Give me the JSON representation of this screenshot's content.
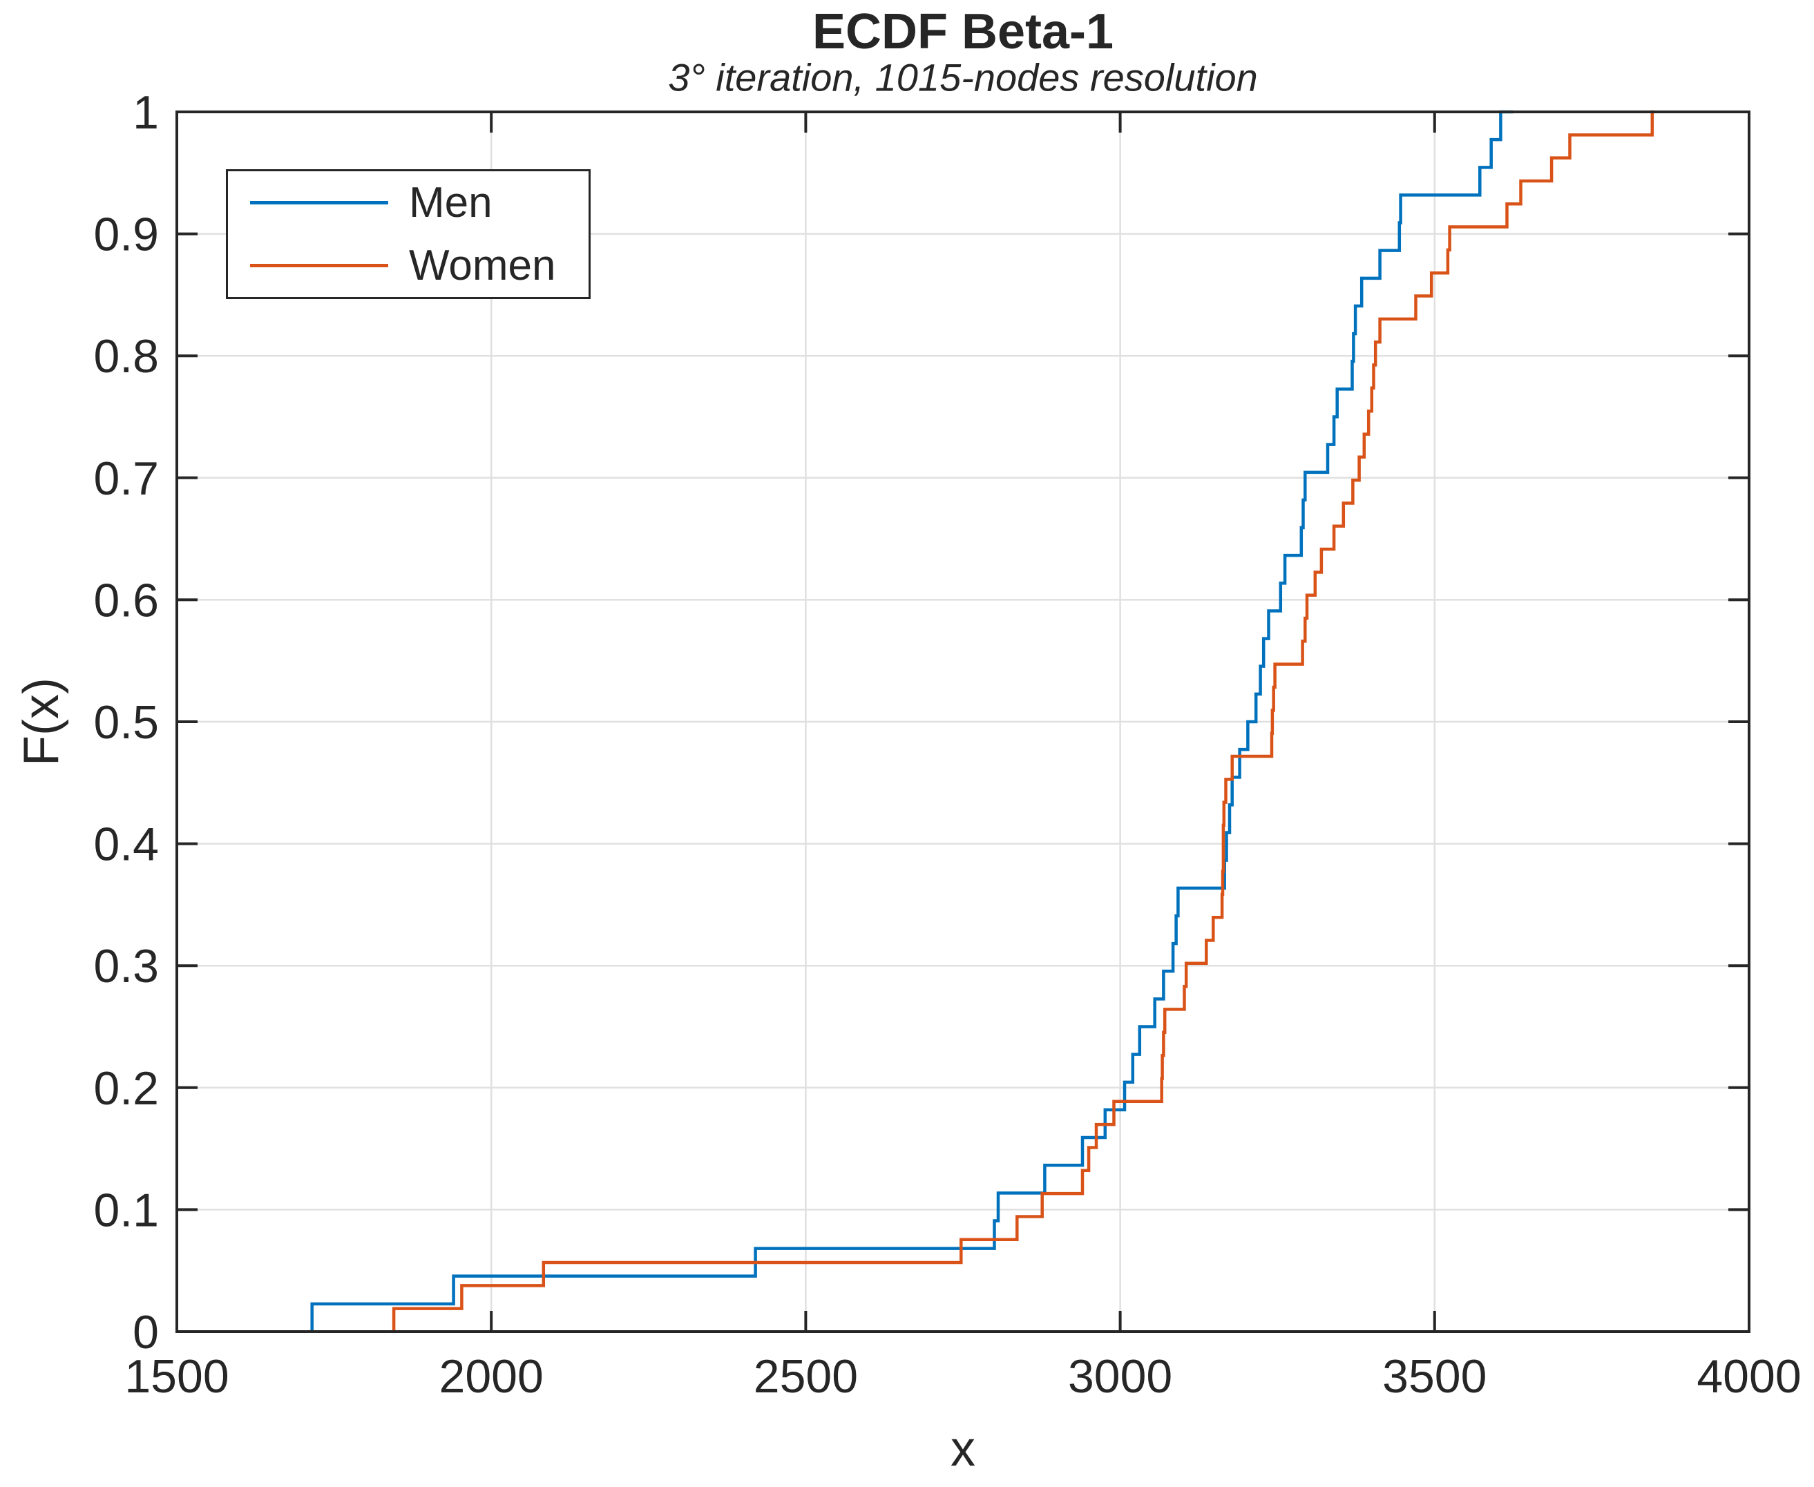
{
  "chart_data": {
    "type": "line",
    "subtype": "ecdf-step",
    "title": "ECDF Beta-1",
    "subtitle": "3° iteration, 1015-nodes resolution",
    "xlabel": "x",
    "ylabel": "F(x)",
    "xlim": [
      1500,
      4000
    ],
    "ylim": [
      0,
      1
    ],
    "xticks": [
      1500,
      2000,
      2500,
      3000,
      3500,
      4000
    ],
    "xtick_labels": [
      "1500",
      "2000",
      "2500",
      "3000",
      "3500",
      "4000"
    ],
    "yticks": [
      0,
      0.1,
      0.2,
      0.3,
      0.4,
      0.5,
      0.6,
      0.7,
      0.8,
      0.9,
      1
    ],
    "ytick_labels": [
      "0",
      "0.1",
      "0.2",
      "0.3",
      "0.4",
      "0.5",
      "0.6",
      "0.7",
      "0.8",
      "0.9",
      "1"
    ],
    "grid": true,
    "grid_color": "#e0e0e0",
    "axis_color": "#262626",
    "legend_position": "top-left-inside",
    "series": [
      {
        "name": "Men",
        "color": "#0072BD",
        "points": [
          [
            1715,
            0.0227
          ],
          [
            1940,
            0.0455
          ],
          [
            2420,
            0.0682
          ],
          [
            2800,
            0.0909
          ],
          [
            2806,
            0.1136
          ],
          [
            2880,
            0.1364
          ],
          [
            2940,
            0.1591
          ],
          [
            2976,
            0.1818
          ],
          [
            3007,
            0.2045
          ],
          [
            3020,
            0.2273
          ],
          [
            3031,
            0.25
          ],
          [
            3055,
            0.2727
          ],
          [
            3069,
            0.2955
          ],
          [
            3084,
            0.3182
          ],
          [
            3089,
            0.3409
          ],
          [
            3092,
            0.3636
          ],
          [
            3166,
            0.3864
          ],
          [
            3169,
            0.4091
          ],
          [
            3174,
            0.4318
          ],
          [
            3178,
            0.4545
          ],
          [
            3190,
            0.4773
          ],
          [
            3203,
            0.5
          ],
          [
            3216,
            0.5227
          ],
          [
            3223,
            0.5455
          ],
          [
            3228,
            0.5682
          ],
          [
            3236,
            0.5909
          ],
          [
            3255,
            0.6136
          ],
          [
            3262,
            0.6364
          ],
          [
            3288,
            0.6591
          ],
          [
            3291,
            0.6818
          ],
          [
            3294,
            0.7045
          ],
          [
            3330,
            0.7273
          ],
          [
            3340,
            0.75
          ],
          [
            3345,
            0.7727
          ],
          [
            3369,
            0.7955
          ],
          [
            3371,
            0.8182
          ],
          [
            3374,
            0.8409
          ],
          [
            3384,
            0.8636
          ],
          [
            3413,
            0.8864
          ],
          [
            3444,
            0.9091
          ],
          [
            3446,
            0.9318
          ],
          [
            3572,
            0.9545
          ],
          [
            3590,
            0.9773
          ],
          [
            3605,
            1.0
          ],
          [
            3625,
            1.0
          ]
        ]
      },
      {
        "name": "Women",
        "color": "#D95319",
        "points": [
          [
            1845,
            0.0189
          ],
          [
            1953,
            0.0377
          ],
          [
            2083,
            0.0566
          ],
          [
            2747,
            0.0755
          ],
          [
            2836,
            0.0943
          ],
          [
            2876,
            0.1132
          ],
          [
            2940,
            0.1321
          ],
          [
            2950,
            0.1509
          ],
          [
            2962,
            0.1698
          ],
          [
            2990,
            0.1887
          ],
          [
            3066,
            0.2075
          ],
          [
            3067,
            0.2264
          ],
          [
            3069,
            0.2453
          ],
          [
            3071,
            0.2642
          ],
          [
            3102,
            0.283
          ],
          [
            3105,
            0.3019
          ],
          [
            3137,
            0.3208
          ],
          [
            3148,
            0.3396
          ],
          [
            3162,
            0.3585
          ],
          [
            3163,
            0.3774
          ],
          [
            3164,
            0.3962
          ],
          [
            3164,
            0.4151
          ],
          [
            3165,
            0.434
          ],
          [
            3168,
            0.4528
          ],
          [
            3178,
            0.4717
          ],
          [
            3241,
            0.4906
          ],
          [
            3242,
            0.5094
          ],
          [
            3244,
            0.5283
          ],
          [
            3246,
            0.5472
          ],
          [
            3290,
            0.566
          ],
          [
            3294,
            0.5849
          ],
          [
            3297,
            0.6038
          ],
          [
            3310,
            0.6226
          ],
          [
            3320,
            0.6415
          ],
          [
            3340,
            0.6604
          ],
          [
            3355,
            0.6792
          ],
          [
            3370,
            0.6981
          ],
          [
            3380,
            0.717
          ],
          [
            3388,
            0.7358
          ],
          [
            3395,
            0.7547
          ],
          [
            3400,
            0.7736
          ],
          [
            3403,
            0.7925
          ],
          [
            3406,
            0.8113
          ],
          [
            3413,
            0.8302
          ],
          [
            3470,
            0.8491
          ],
          [
            3495,
            0.8679
          ],
          [
            3521,
            0.8868
          ],
          [
            3524,
            0.9057
          ],
          [
            3615,
            0.9245
          ],
          [
            3637,
            0.9434
          ],
          [
            3686,
            0.9623
          ],
          [
            3715,
            0.9811
          ],
          [
            3846,
            1.0
          ],
          [
            3850,
            1.0
          ]
        ]
      }
    ]
  },
  "legend": {
    "items": [
      {
        "label": "Men",
        "color": "#0072BD"
      },
      {
        "label": "Women",
        "color": "#D95319"
      }
    ]
  }
}
